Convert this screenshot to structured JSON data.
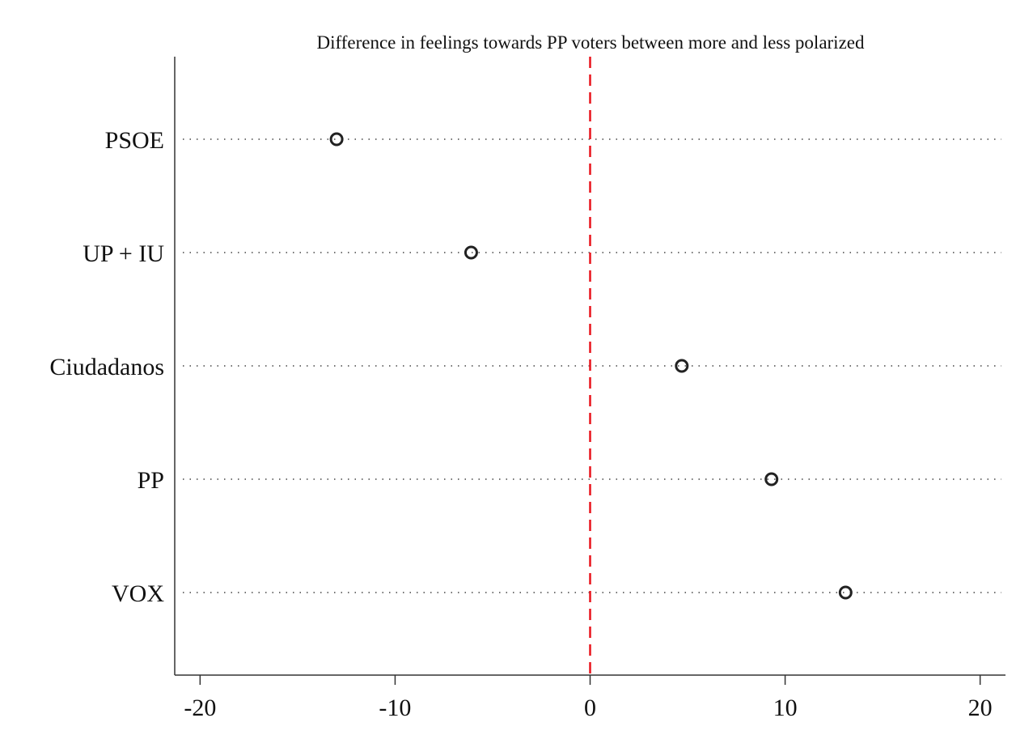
{
  "chart_data": {
    "type": "scatter",
    "title": "Difference in feelings towards PP voters between more and less polarized",
    "categories": [
      "PSOE",
      "UP + IU",
      "Ciudadanos",
      "PP",
      "VOX"
    ],
    "values": [
      -13.0,
      -6.1,
      4.7,
      9.3,
      13.1
    ],
    "x_ticks": [
      -20,
      -10,
      0,
      10,
      20
    ],
    "xlim": [
      -21.3,
      21.3
    ],
    "reference_line": {
      "x": 0,
      "color": "#e8141c"
    },
    "marker": "hollow-circle",
    "grid": "dotted horizontal guides",
    "xlabel": "",
    "ylabel": ""
  }
}
